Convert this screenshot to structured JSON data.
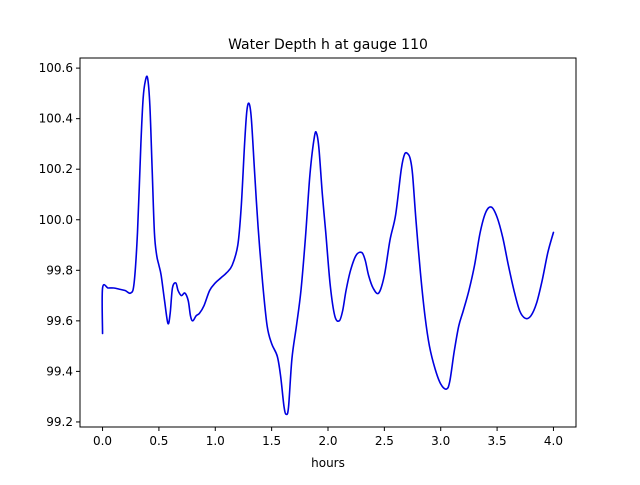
{
  "chart_data": {
    "type": "line",
    "title": "Water Depth h at gauge 110",
    "xlabel": "hours",
    "ylabel": "",
    "xlim": [
      -0.2,
      4.2
    ],
    "ylim": [
      99.18,
      100.64
    ],
    "grid": false,
    "legend": "none",
    "x_ticks": [
      0.0,
      0.5,
      1.0,
      1.5,
      2.0,
      2.5,
      3.0,
      3.5,
      4.0
    ],
    "x_tick_labels": [
      "0.0",
      "0.5",
      "1.0",
      "1.5",
      "2.0",
      "2.5",
      "3.0",
      "3.5",
      "4.0"
    ],
    "y_ticks": [
      99.2,
      99.4,
      99.6,
      99.8,
      100.0,
      100.2,
      100.4,
      100.6
    ],
    "y_tick_labels": [
      "99.2",
      "99.4",
      "99.6",
      "99.8",
      "100.0",
      "100.2",
      "100.4",
      "100.6"
    ],
    "series": [
      {
        "color": "#0000e0",
        "x": [
          0.0,
          0.0,
          0.05,
          0.1,
          0.15,
          0.2,
          0.25,
          0.28,
          0.31,
          0.34,
          0.36,
          0.38,
          0.4,
          0.42,
          0.44,
          0.46,
          0.48,
          0.5,
          0.52,
          0.55,
          0.58,
          0.6,
          0.62,
          0.65,
          0.67,
          0.7,
          0.73,
          0.76,
          0.78,
          0.8,
          0.83,
          0.86,
          0.9,
          0.95,
          1.0,
          1.05,
          1.1,
          1.15,
          1.2,
          1.23,
          1.26,
          1.28,
          1.3,
          1.32,
          1.35,
          1.38,
          1.42,
          1.46,
          1.5,
          1.55,
          1.58,
          1.61,
          1.63,
          1.65,
          1.68,
          1.72,
          1.76,
          1.8,
          1.84,
          1.88,
          1.9,
          1.92,
          1.95,
          1.98,
          2.02,
          2.06,
          2.1,
          2.13,
          2.16,
          2.2,
          2.25,
          2.3,
          2.33,
          2.36,
          2.4,
          2.45,
          2.5,
          2.55,
          2.6,
          2.65,
          2.68,
          2.71,
          2.73,
          2.75,
          2.78,
          2.82,
          2.86,
          2.9,
          2.95,
          3.0,
          3.05,
          3.08,
          3.12,
          3.16,
          3.2,
          3.25,
          3.3,
          3.35,
          3.4,
          3.45,
          3.5,
          3.55,
          3.6,
          3.65,
          3.7,
          3.75,
          3.8,
          3.85,
          3.9,
          3.95,
          4.0
        ],
        "y": [
          99.55,
          99.73,
          99.73,
          99.73,
          99.725,
          99.72,
          99.71,
          99.75,
          99.95,
          100.3,
          100.48,
          100.55,
          100.56,
          100.45,
          100.2,
          99.95,
          99.86,
          99.82,
          99.78,
          99.68,
          99.59,
          99.63,
          99.73,
          99.75,
          99.72,
          99.7,
          99.71,
          99.68,
          99.62,
          99.6,
          99.62,
          99.63,
          99.66,
          99.72,
          99.75,
          99.77,
          99.79,
          99.82,
          99.9,
          100.05,
          100.3,
          100.43,
          100.46,
          100.4,
          100.18,
          99.97,
          99.75,
          99.58,
          99.51,
          99.46,
          99.38,
          99.26,
          99.23,
          99.26,
          99.45,
          99.58,
          99.72,
          99.93,
          100.18,
          100.33,
          100.34,
          100.28,
          100.1,
          99.95,
          99.74,
          99.62,
          99.6,
          99.64,
          99.72,
          99.8,
          99.86,
          99.87,
          99.84,
          99.78,
          99.73,
          99.71,
          99.78,
          99.92,
          100.02,
          100.2,
          100.26,
          100.26,
          100.24,
          100.18,
          100.0,
          99.79,
          99.62,
          99.5,
          99.41,
          99.35,
          99.33,
          99.36,
          99.48,
          99.58,
          99.64,
          99.72,
          99.82,
          99.95,
          100.03,
          100.05,
          100.01,
          99.93,
          99.82,
          99.72,
          99.64,
          99.61,
          99.62,
          99.67,
          99.76,
          99.87,
          99.95
        ]
      }
    ]
  }
}
